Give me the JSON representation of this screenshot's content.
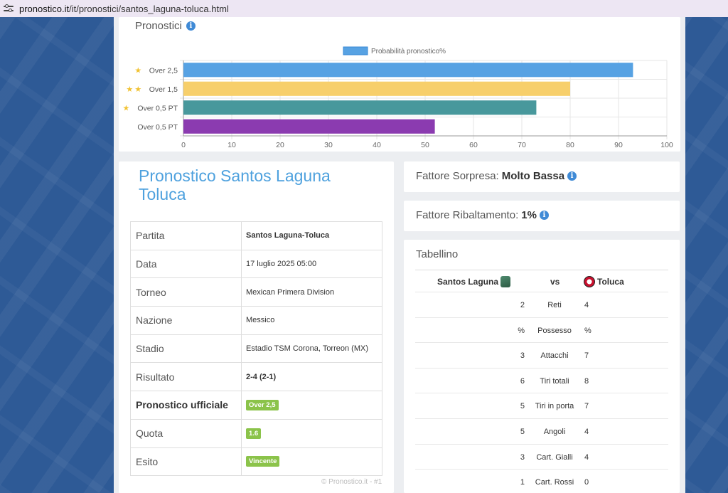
{
  "browser": {
    "url_host": "pronostico.it",
    "url_path": "/it/pronostici/santos_laguna-toluca.html"
  },
  "chart_section": {
    "title": "Pronostici"
  },
  "chart_data": {
    "type": "bar",
    "orientation": "horizontal",
    "categories": [
      "Over 2,5",
      "Over 1,5",
      "Over 0,5 PT",
      "Over 0,5 PT"
    ],
    "category_stars": [
      1,
      2,
      1,
      0
    ],
    "series": [
      {
        "name": "Probabilità pronostico%",
        "values": [
          93,
          80,
          73,
          52
        ],
        "colors": [
          "#57a2e3",
          "#f7cf6b",
          "#48989c",
          "#8b3bb0"
        ]
      }
    ],
    "xlim": [
      0,
      100
    ],
    "xticks": [
      0,
      10,
      20,
      30,
      40,
      50,
      60,
      70,
      80,
      90,
      100
    ],
    "legend_position": "top-center",
    "grid": true
  },
  "details": {
    "title": "Pronostico Santos Laguna Toluca",
    "rows": [
      {
        "key": "Partita",
        "value": "Santos Laguna-Toluca"
      },
      {
        "key": "Data",
        "value": "17 luglio 2025 05:00"
      },
      {
        "key": "Torneo",
        "value": "Mexican Primera Division"
      },
      {
        "key": "Nazione",
        "value": "Messico"
      },
      {
        "key": "Stadio",
        "value": "Estadio TSM Corona, Torreon (MX)"
      },
      {
        "key": "Risultato",
        "value": "2-4 (2-1)"
      },
      {
        "key": "Pronostico ufficiale",
        "value": "Over 2,5"
      },
      {
        "key": "Quota",
        "value": "1.6"
      },
      {
        "key": "Esito",
        "value": "Vincente"
      }
    ],
    "copyright": "© Pronostico.it - #1"
  },
  "fattore_sorpresa": {
    "label": "Fattore Sorpresa:",
    "value": "Molto Bassa"
  },
  "fattore_ribaltamento": {
    "label": "Fattore Ribaltamento:",
    "value": "1%"
  },
  "tabellino": {
    "title": "Tabellino",
    "home_team": "Santos Laguna",
    "vs": "vs",
    "away_team": "Toluca",
    "stats": [
      {
        "home": "2",
        "name": "Reti",
        "away": "4"
      },
      {
        "home": "%",
        "name": "Possesso",
        "away": "%"
      },
      {
        "home": "3",
        "name": "Attacchi",
        "away": "7"
      },
      {
        "home": "6",
        "name": "Tiri totali",
        "away": "8"
      },
      {
        "home": "5",
        "name": "Tiri in porta",
        "away": "7"
      },
      {
        "home": "5",
        "name": "Angoli",
        "away": "4"
      },
      {
        "home": "3",
        "name": "Cart. Gialli",
        "away": "4"
      },
      {
        "home": "1",
        "name": "Cart. Rossi",
        "away": "0"
      }
    ]
  }
}
